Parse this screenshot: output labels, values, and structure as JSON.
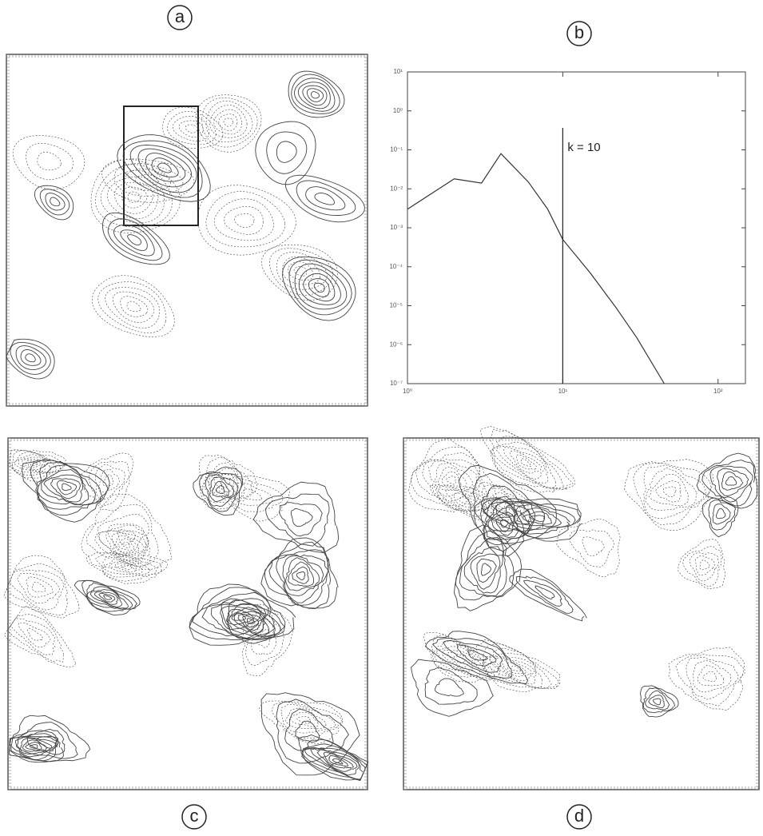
{
  "panels": {
    "a": "a",
    "b": "b",
    "c": "c",
    "d": "d"
  },
  "chart_data": {
    "type": "line",
    "xscale": "log",
    "yscale": "log",
    "color": "#333333",
    "x": [
      1,
      2,
      3,
      4,
      6,
      8,
      10,
      15,
      22,
      30,
      45
    ],
    "values": [
      0.003,
      0.018,
      0.014,
      0.08,
      0.015,
      0.003,
      0.0005,
      7e-05,
      9e-06,
      1.5e-06,
      1e-07
    ],
    "xlim": [
      1,
      150
    ],
    "ylim": [
      1e-07,
      10
    ],
    "xticks": [
      {
        "value": 1,
        "label": "10⁰"
      },
      {
        "value": 10,
        "label": "10¹"
      },
      {
        "value": 100,
        "label": "10²"
      }
    ],
    "yticks": [
      {
        "value": 10,
        "label": "10¹"
      },
      {
        "value": 1,
        "label": "10⁰"
      },
      {
        "value": 0.1,
        "label": "10⁻¹"
      },
      {
        "value": 0.01,
        "label": "10⁻²"
      },
      {
        "value": 0.001,
        "label": "10⁻³"
      },
      {
        "value": 0.0001,
        "label": "10⁻⁴"
      },
      {
        "value": 1e-05,
        "label": "10⁻⁵"
      },
      {
        "value": 1e-06,
        "label": "10⁻⁶"
      },
      {
        "value": 1e-07,
        "label": "10⁻⁷"
      }
    ],
    "annotations": [
      {
        "text": "k = 10",
        "x": 10
      }
    ]
  }
}
